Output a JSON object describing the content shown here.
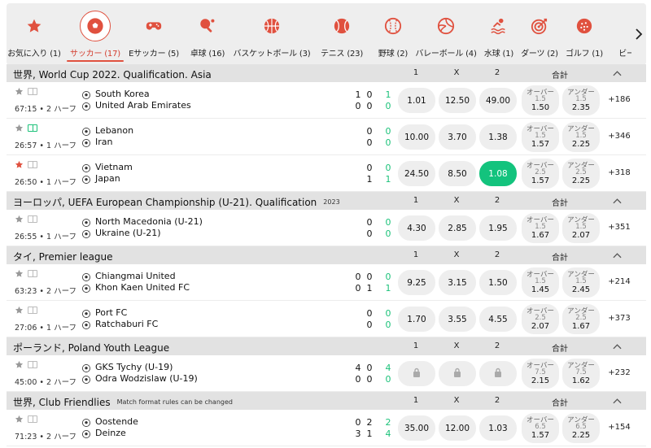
{
  "sports": [
    {
      "label": "お気に入り (1)",
      "icon": "star-icon"
    },
    {
      "label": "サッカー (17)",
      "icon": "soccer-ball-icon",
      "active": true
    },
    {
      "label": "Eサッカー (5)",
      "icon": "gamepad-icon"
    },
    {
      "label": "卓球 (16)",
      "icon": "table-tennis-icon"
    },
    {
      "label": "バスケットボール (3)",
      "icon": "basketball-icon"
    },
    {
      "label": "テニス (23)",
      "icon": "tennis-ball-icon"
    },
    {
      "label": "野球 (2)",
      "icon": "baseball-icon"
    },
    {
      "label": "バレーボール (4)",
      "icon": "volleyball-icon"
    },
    {
      "label": "水球 (1)",
      "icon": "water-polo-icon"
    },
    {
      "label": "ダーツ (2)",
      "icon": "darts-icon"
    },
    {
      "label": "ゴルフ (1)",
      "icon": "golf-icon"
    },
    {
      "label": "ビー",
      "icon": ""
    }
  ],
  "headers": {
    "one": "1",
    "x": "X",
    "two": "2",
    "total": "合計"
  },
  "leagues": [
    {
      "name": "世界, World Cup 2022. Qualification. Asia",
      "tag": "",
      "matches": [
        {
          "fav": false,
          "live_field": false,
          "time": "67:15 • 2 ハーフ",
          "home": "South Korea",
          "away": "United Arab Emirates",
          "home_scores": [
            "1",
            "0",
            "1"
          ],
          "away_scores": [
            "0",
            "0",
            "0"
          ],
          "odds": [
            "1.01",
            "12.50",
            "49.00"
          ],
          "selected": -1,
          "locked": false,
          "over": {
            "label": "オーバー",
            "line": "1.5",
            "odd": "1.50"
          },
          "under": {
            "label": "アンダー",
            "line": "1.5",
            "odd": "2.35"
          },
          "more": "+186"
        },
        {
          "fav": false,
          "live_field": true,
          "time": "26:57 • 1 ハーフ",
          "home": "Lebanon",
          "away": "Iran",
          "home_scores": [
            "",
            "0",
            "0"
          ],
          "away_scores": [
            "",
            "0",
            "0"
          ],
          "odds": [
            "10.00",
            "3.70",
            "1.38"
          ],
          "selected": -1,
          "locked": false,
          "over": {
            "label": "オーバー",
            "line": "1.5",
            "odd": "1.57"
          },
          "under": {
            "label": "アンダー",
            "line": "1.5",
            "odd": "2.25"
          },
          "more": "+346"
        },
        {
          "fav": true,
          "live_field": false,
          "time": "26:50 • 1 ハーフ",
          "home": "Vietnam",
          "away": "Japan",
          "home_scores": [
            "",
            "0",
            "0"
          ],
          "away_scores": [
            "",
            "1",
            "1"
          ],
          "odds": [
            "24.50",
            "8.50",
            "1.08"
          ],
          "selected": 2,
          "locked": false,
          "over": {
            "label": "オーバー",
            "line": "2.5",
            "odd": "1.57"
          },
          "under": {
            "label": "アンダー",
            "line": "2.5",
            "odd": "2.25"
          },
          "more": "+318"
        }
      ]
    },
    {
      "name": "ヨーロッパ, UEFA European Championship (U-21). Qualification",
      "tag": "2023",
      "matches": [
        {
          "fav": false,
          "live_field": false,
          "time": "26:55 • 1 ハーフ",
          "home": "North Macedonia (U-21)",
          "away": "Ukraine (U-21)",
          "home_scores": [
            "",
            "0",
            "0"
          ],
          "away_scores": [
            "",
            "0",
            "0"
          ],
          "odds": [
            "4.30",
            "2.85",
            "1.95"
          ],
          "selected": -1,
          "locked": false,
          "over": {
            "label": "オーバー",
            "line": "1.5",
            "odd": "1.67"
          },
          "under": {
            "label": "アンダー",
            "line": "1.5",
            "odd": "2.07"
          },
          "more": "+351"
        }
      ]
    },
    {
      "name": "タイ, Premier league",
      "tag": "",
      "matches": [
        {
          "fav": false,
          "live_field": false,
          "time": "63:23 • 2 ハーフ",
          "home": "Chiangmai United",
          "away": "Khon Kaen United FC",
          "home_scores": [
            "0",
            "0",
            "0"
          ],
          "away_scores": [
            "0",
            "1",
            "1"
          ],
          "odds": [
            "9.25",
            "3.15",
            "1.50"
          ],
          "selected": -1,
          "locked": false,
          "over": {
            "label": "オーバー",
            "line": "1.5",
            "odd": "1.45"
          },
          "under": {
            "label": "アンダー",
            "line": "1.5",
            "odd": "2.45"
          },
          "more": "+214"
        },
        {
          "fav": false,
          "live_field": false,
          "time": "27:06 • 1 ハーフ",
          "home": "Port FC",
          "away": "Ratchaburi FC",
          "home_scores": [
            "",
            "0",
            "0"
          ],
          "away_scores": [
            "",
            "0",
            "0"
          ],
          "odds": [
            "1.70",
            "3.55",
            "4.55"
          ],
          "selected": -1,
          "locked": false,
          "over": {
            "label": "オーバー",
            "line": "2.5",
            "odd": "2.07"
          },
          "under": {
            "label": "アンダー",
            "line": "2.5",
            "odd": "1.67"
          },
          "more": "+373"
        }
      ]
    },
    {
      "name": "ポーランド, Poland Youth League",
      "tag": "",
      "matches": [
        {
          "fav": false,
          "live_field": false,
          "time": "45:00 • 2 ハーフ",
          "home": "GKS Tychy (U-19)",
          "away": "Odra Wodzislaw (U-19)",
          "home_scores": [
            "4",
            "0",
            "4"
          ],
          "away_scores": [
            "0",
            "0",
            "0"
          ],
          "odds": [
            "",
            "",
            ""
          ],
          "selected": -1,
          "locked": true,
          "over": {
            "label": "オーバー",
            "line": "7.5",
            "odd": "2.15"
          },
          "under": {
            "label": "アンダー",
            "line": "7.5",
            "odd": "1.62"
          },
          "more": "+232"
        }
      ]
    },
    {
      "name": "世界, Club Friendlies",
      "tag": "Match format rules can be changed",
      "matches": [
        {
          "fav": false,
          "live_field": false,
          "time": "71:23 • 2 ハーフ",
          "home": "Oostende",
          "away": "Deinze",
          "home_scores": [
            "0",
            "2",
            "2"
          ],
          "away_scores": [
            "3",
            "1",
            "4"
          ],
          "odds": [
            "35.00",
            "12.00",
            "1.03"
          ],
          "selected": -1,
          "locked": false,
          "over": {
            "label": "オーバー",
            "line": "6.5",
            "odd": "1.57"
          },
          "under": {
            "label": "アンダー",
            "line": "6.5",
            "odd": "2.25"
          },
          "more": "+154"
        }
      ]
    }
  ],
  "colors": {
    "accent": "#e0513f",
    "selected_odd": "#13c37d",
    "score_total": "#1cc27a",
    "league_bg": "#e2e2e2",
    "pill_bg": "#eeeeee"
  }
}
